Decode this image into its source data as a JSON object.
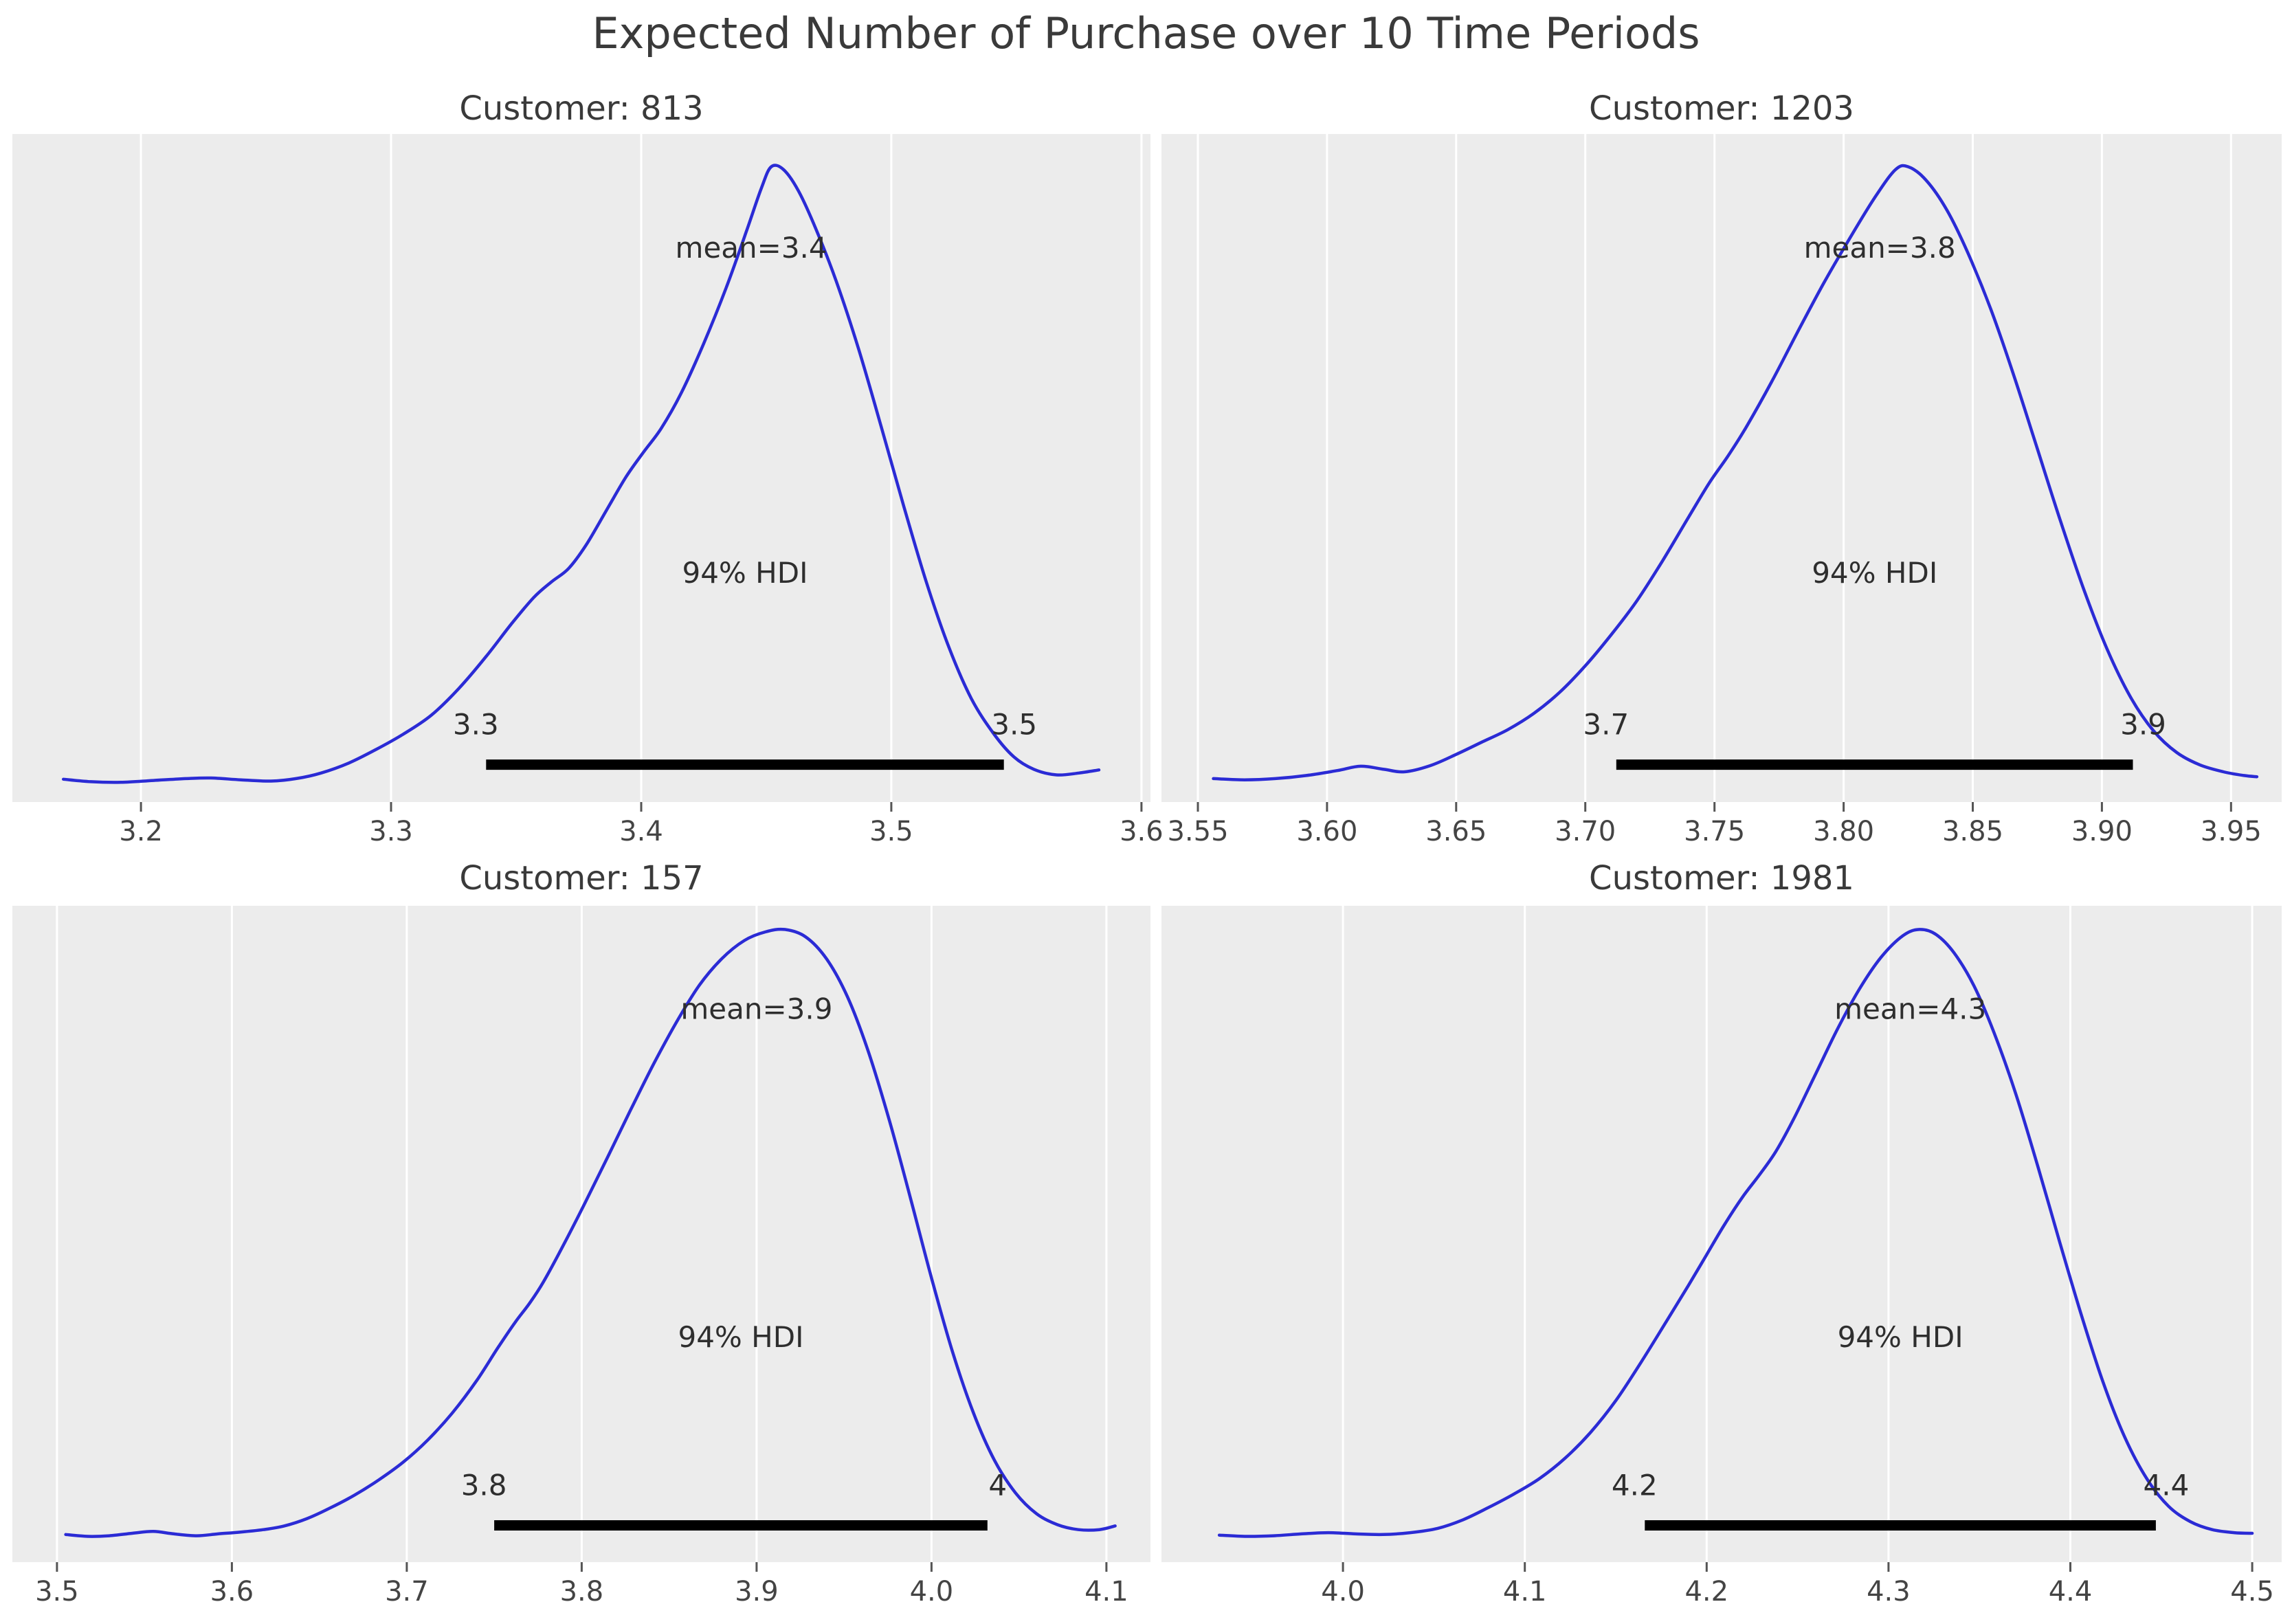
{
  "title": "Expected Number of Purchase over 10 Time Periods",
  "colors": {
    "curve": "#2b2bd5",
    "plot_bg": "#ececec",
    "gridline": "#ffffff",
    "hdi_bar": "#000000",
    "annotation_text": "#2e2e2e",
    "tick_text": "#444444",
    "tick_mark": "#555555",
    "title_text": "#3a3a3a"
  },
  "chart_data": [
    {
      "type": "line",
      "kind": "kde-posterior",
      "title": "Customer: 813",
      "customer": "813",
      "mean_value": 3.4,
      "mean_label": "mean=3.4",
      "mean_x": 3.444,
      "hdi_text": "94% HDI",
      "hdi_interval": [
        3.338,
        3.545
      ],
      "hdi_endpoint_labels": [
        "3.3",
        "3.5"
      ],
      "xlim": [
        3.1486,
        3.6036
      ],
      "xticks": [
        3.2,
        3.3,
        3.4,
        3.5,
        3.6
      ],
      "xtick_labels": [
        "3.2",
        "3.3",
        "3.4",
        "3.5",
        "3.6"
      ],
      "curve": [
        [
          3.169,
          0.012
        ],
        [
          3.18,
          0.008
        ],
        [
          3.192,
          0.007
        ],
        [
          3.205,
          0.01
        ],
        [
          3.218,
          0.013
        ],
        [
          3.228,
          0.014
        ],
        [
          3.24,
          0.011
        ],
        [
          3.252,
          0.009
        ],
        [
          3.262,
          0.013
        ],
        [
          3.272,
          0.022
        ],
        [
          3.283,
          0.038
        ],
        [
          3.294,
          0.06
        ],
        [
          3.305,
          0.085
        ],
        [
          3.316,
          0.115
        ],
        [
          3.327,
          0.158
        ],
        [
          3.338,
          0.21
        ],
        [
          3.348,
          0.262
        ],
        [
          3.357,
          0.305
        ],
        [
          3.364,
          0.33
        ],
        [
          3.371,
          0.352
        ],
        [
          3.378,
          0.39
        ],
        [
          3.386,
          0.445
        ],
        [
          3.394,
          0.5
        ],
        [
          3.401,
          0.54
        ],
        [
          3.408,
          0.578
        ],
        [
          3.416,
          0.635
        ],
        [
          3.425,
          0.715
        ],
        [
          3.434,
          0.805
        ],
        [
          3.442,
          0.895
        ],
        [
          3.448,
          0.965
        ],
        [
          3.452,
          1.0
        ],
        [
          3.457,
          0.995
        ],
        [
          3.463,
          0.96
        ],
        [
          3.47,
          0.898
        ],
        [
          3.478,
          0.815
        ],
        [
          3.487,
          0.705
        ],
        [
          3.496,
          0.58
        ],
        [
          3.505,
          0.452
        ],
        [
          3.514,
          0.33
        ],
        [
          3.523,
          0.225
        ],
        [
          3.532,
          0.142
        ],
        [
          3.541,
          0.085
        ],
        [
          3.549,
          0.048
        ],
        [
          3.557,
          0.028
        ],
        [
          3.566,
          0.019
        ],
        [
          3.575,
          0.022
        ],
        [
          3.583,
          0.027
        ]
      ]
    },
    {
      "type": "line",
      "kind": "kde-posterior",
      "title": "Customer: 1203",
      "customer": "1203",
      "mean_value": 3.8,
      "mean_label": "mean=3.8",
      "mean_x": 3.814,
      "hdi_text": "94% HDI",
      "hdi_interval": [
        3.712,
        3.912
      ],
      "hdi_endpoint_labels": [
        "3.7",
        "3.9"
      ],
      "xlim": [
        3.5359,
        3.9696
      ],
      "xticks": [
        3.55,
        3.6,
        3.65,
        3.7,
        3.75,
        3.8,
        3.85,
        3.9,
        3.95
      ],
      "xtick_labels": [
        "3.55",
        "3.60",
        "3.65",
        "3.70",
        "3.75",
        "3.80",
        "3.85",
        "3.90",
        "3.95"
      ],
      "curve": [
        [
          3.556,
          0.013
        ],
        [
          3.568,
          0.011
        ],
        [
          3.58,
          0.013
        ],
        [
          3.592,
          0.018
        ],
        [
          3.604,
          0.026
        ],
        [
          3.613,
          0.033
        ],
        [
          3.622,
          0.028
        ],
        [
          3.63,
          0.024
        ],
        [
          3.64,
          0.034
        ],
        [
          3.65,
          0.052
        ],
        [
          3.66,
          0.072
        ],
        [
          3.67,
          0.092
        ],
        [
          3.68,
          0.118
        ],
        [
          3.69,
          0.152
        ],
        [
          3.7,
          0.195
        ],
        [
          3.71,
          0.245
        ],
        [
          3.72,
          0.3
        ],
        [
          3.73,
          0.365
        ],
        [
          3.74,
          0.435
        ],
        [
          3.748,
          0.49
        ],
        [
          3.755,
          0.532
        ],
        [
          3.762,
          0.578
        ],
        [
          3.772,
          0.652
        ],
        [
          3.782,
          0.732
        ],
        [
          3.792,
          0.81
        ],
        [
          3.802,
          0.882
        ],
        [
          3.812,
          0.95
        ],
        [
          3.82,
          0.995
        ],
        [
          3.825,
          1.0
        ],
        [
          3.832,
          0.978
        ],
        [
          3.84,
          0.93
        ],
        [
          3.848,
          0.862
        ],
        [
          3.857,
          0.77
        ],
        [
          3.866,
          0.662
        ],
        [
          3.875,
          0.545
        ],
        [
          3.884,
          0.428
        ],
        [
          3.893,
          0.318
        ],
        [
          3.902,
          0.222
        ],
        [
          3.911,
          0.145
        ],
        [
          3.92,
          0.09
        ],
        [
          3.929,
          0.055
        ],
        [
          3.938,
          0.035
        ],
        [
          3.947,
          0.024
        ],
        [
          3.955,
          0.018
        ],
        [
          3.96,
          0.016
        ]
      ]
    },
    {
      "type": "line",
      "kind": "kde-posterior",
      "title": "Customer: 157",
      "customer": "157",
      "mean_value": 3.9,
      "mean_label": "mean=3.9",
      "mean_x": 3.9,
      "hdi_text": "94% HDI",
      "hdi_interval": [
        3.75,
        4.032
      ],
      "hdi_endpoint_labels": [
        "3.8",
        "4"
      ],
      "xlim": [
        3.4745,
        4.1252
      ],
      "xticks": [
        3.5,
        3.6,
        3.7,
        3.8,
        3.9,
        4.0,
        4.1
      ],
      "xtick_labels": [
        "3.5",
        "3.6",
        "3.7",
        "3.8",
        "3.9",
        "4.0",
        "4.1"
      ],
      "curve": [
        [
          3.505,
          0.014
        ],
        [
          3.518,
          0.011
        ],
        [
          3.53,
          0.012
        ],
        [
          3.543,
          0.016
        ],
        [
          3.555,
          0.019
        ],
        [
          3.567,
          0.015
        ],
        [
          3.58,
          0.012
        ],
        [
          3.592,
          0.015
        ],
        [
          3.605,
          0.018
        ],
        [
          3.618,
          0.022
        ],
        [
          3.63,
          0.028
        ],
        [
          3.643,
          0.04
        ],
        [
          3.656,
          0.057
        ],
        [
          3.67,
          0.078
        ],
        [
          3.684,
          0.103
        ],
        [
          3.698,
          0.132
        ],
        [
          3.712,
          0.168
        ],
        [
          3.726,
          0.212
        ],
        [
          3.74,
          0.265
        ],
        [
          3.752,
          0.318
        ],
        [
          3.762,
          0.36
        ],
        [
          3.77,
          0.39
        ],
        [
          3.778,
          0.425
        ],
        [
          3.79,
          0.488
        ],
        [
          3.802,
          0.555
        ],
        [
          3.815,
          0.63
        ],
        [
          3.828,
          0.706
        ],
        [
          3.841,
          0.78
        ],
        [
          3.854,
          0.848
        ],
        [
          3.867,
          0.908
        ],
        [
          3.88,
          0.952
        ],
        [
          3.893,
          0.982
        ],
        [
          3.905,
          0.996
        ],
        [
          3.916,
          1.0
        ],
        [
          3.928,
          0.988
        ],
        [
          3.94,
          0.952
        ],
        [
          3.952,
          0.89
        ],
        [
          3.964,
          0.8
        ],
        [
          3.976,
          0.688
        ],
        [
          3.988,
          0.562
        ],
        [
          4.0,
          0.432
        ],
        [
          4.012,
          0.312
        ],
        [
          4.024,
          0.212
        ],
        [
          4.036,
          0.135
        ],
        [
          4.048,
          0.082
        ],
        [
          4.06,
          0.048
        ],
        [
          4.072,
          0.03
        ],
        [
          4.084,
          0.022
        ],
        [
          4.096,
          0.022
        ],
        [
          4.105,
          0.028
        ]
      ]
    },
    {
      "type": "line",
      "kind": "kde-posterior",
      "title": "Customer: 1981",
      "customer": "1981",
      "mean_value": 4.3,
      "mean_label": "mean=4.3",
      "mean_x": 4.312,
      "hdi_text": "94% HDI",
      "hdi_interval": [
        4.166,
        4.447
      ],
      "hdi_endpoint_labels": [
        "4.2",
        "4.4"
      ],
      "xlim": [
        3.9002,
        4.5162
      ],
      "xticks": [
        4.0,
        4.1,
        4.2,
        4.3,
        4.4,
        4.5
      ],
      "xtick_labels": [
        "4.0",
        "4.1",
        "4.2",
        "4.3",
        "4.4",
        "4.5"
      ],
      "curve": [
        [
          3.932,
          0.013
        ],
        [
          3.947,
          0.011
        ],
        [
          3.962,
          0.012
        ],
        [
          3.977,
          0.015
        ],
        [
          3.992,
          0.017
        ],
        [
          4.007,
          0.015
        ],
        [
          4.022,
          0.014
        ],
        [
          4.037,
          0.017
        ],
        [
          4.052,
          0.024
        ],
        [
          4.066,
          0.038
        ],
        [
          4.08,
          0.058
        ],
        [
          4.094,
          0.08
        ],
        [
          4.108,
          0.105
        ],
        [
          4.122,
          0.138
        ],
        [
          4.136,
          0.18
        ],
        [
          4.15,
          0.232
        ],
        [
          4.164,
          0.295
        ],
        [
          4.178,
          0.362
        ],
        [
          4.19,
          0.42
        ],
        [
          4.2,
          0.47
        ],
        [
          4.21,
          0.52
        ],
        [
          4.22,
          0.565
        ],
        [
          4.229,
          0.6
        ],
        [
          4.238,
          0.638
        ],
        [
          4.248,
          0.692
        ],
        [
          4.26,
          0.765
        ],
        [
          4.272,
          0.838
        ],
        [
          4.284,
          0.903
        ],
        [
          4.296,
          0.955
        ],
        [
          4.308,
          0.99
        ],
        [
          4.317,
          1.0
        ],
        [
          4.326,
          0.992
        ],
        [
          4.336,
          0.962
        ],
        [
          4.347,
          0.908
        ],
        [
          4.358,
          0.832
        ],
        [
          4.37,
          0.732
        ],
        [
          4.382,
          0.615
        ],
        [
          4.394,
          0.492
        ],
        [
          4.406,
          0.372
        ],
        [
          4.418,
          0.262
        ],
        [
          4.43,
          0.172
        ],
        [
          4.442,
          0.105
        ],
        [
          4.454,
          0.06
        ],
        [
          4.466,
          0.035
        ],
        [
          4.478,
          0.022
        ],
        [
          4.49,
          0.017
        ],
        [
          4.5,
          0.016
        ]
      ]
    }
  ]
}
